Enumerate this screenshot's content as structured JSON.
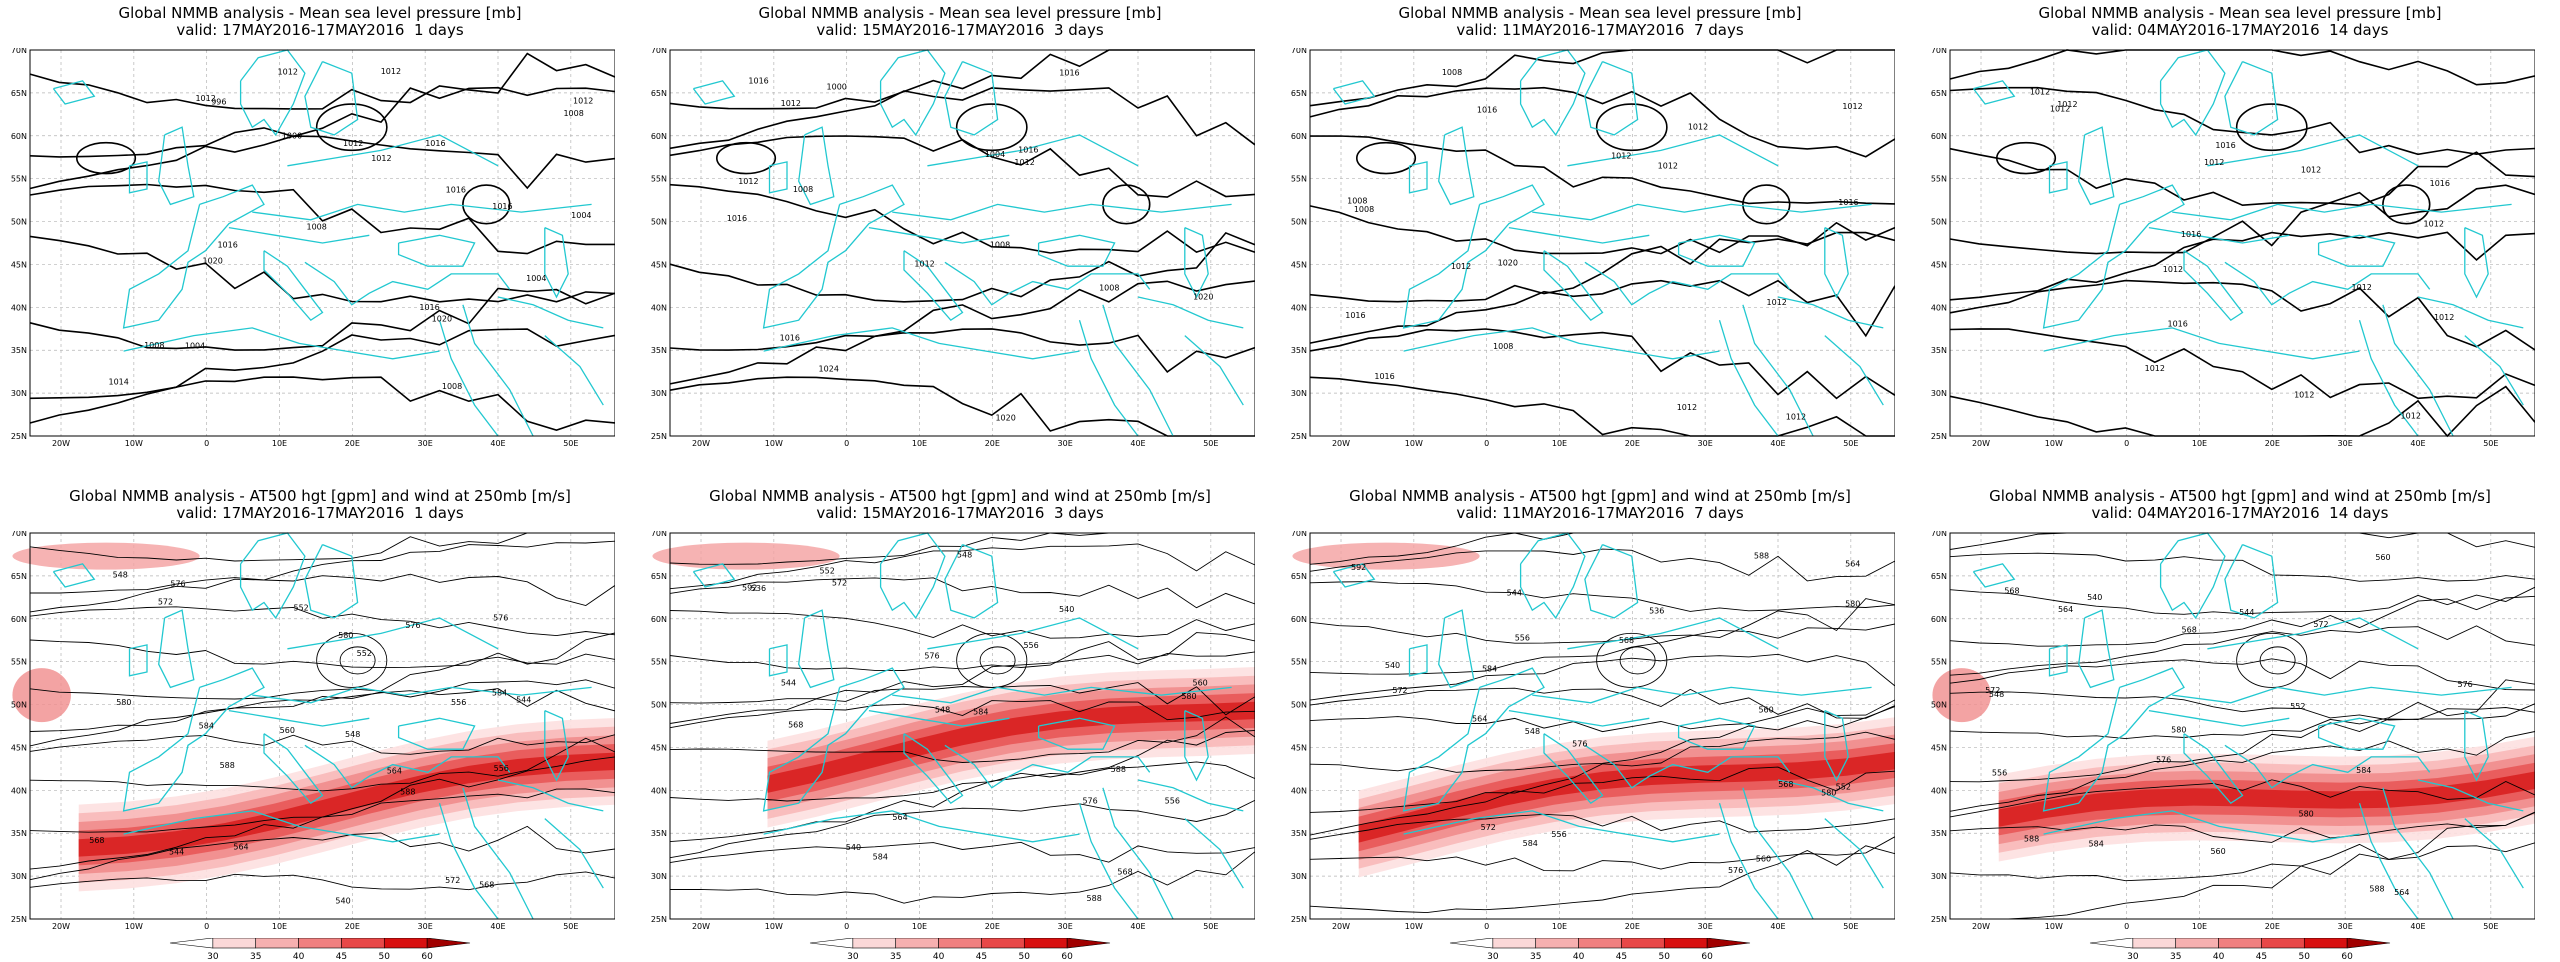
{
  "panels_top": [
    {
      "title_line1": "Global NMMB analysis - Mean sea level pressure [mb]",
      "title_line2": "valid: 17MAY2016-17MAY2016  1 days",
      "isobar_labels": [
        "996",
        "1000",
        "1004",
        "1008",
        "1004",
        "1008",
        "1012",
        "1012",
        "1016",
        "1016",
        "1020",
        "1020",
        "1004",
        "1008",
        "1012",
        "1012",
        "1016",
        "1016",
        "1016",
        "1014",
        "1012",
        "1008",
        "1012"
      ]
    },
    {
      "title_line1": "Global NMMB analysis - Mean sea level pressure [mb]",
      "title_line2": "valid: 15MAY2016-17MAY2016  3 days",
      "isobar_labels": [
        "1000",
        "1004",
        "1008",
        "1008",
        "1020",
        "1024",
        "1020",
        "1016",
        "1016",
        "1012",
        "1012",
        "1008",
        "1016",
        "1016",
        "1012",
        "1012",
        "1016"
      ]
    },
    {
      "title_line1": "Global NMMB analysis - Mean sea level pressure [mb]",
      "title_line2": "valid: 11MAY2016-17MAY2016  7 days",
      "isobar_labels": [
        "1008",
        "1012",
        "1008",
        "1020",
        "1016",
        "1008",
        "1012",
        "1016",
        "1012",
        "1016",
        "1012",
        "1012",
        "1016",
        "1012",
        "1012",
        "1012",
        "1008"
      ]
    },
    {
      "title_line1": "Global NMMB analysis - Mean sea level pressure [mb]",
      "title_line2": "valid: 04MAY2016-17MAY2016  14 days",
      "isobar_labels": [
        "1012",
        "1016",
        "1016",
        "1016",
        "1012",
        "1016",
        "1012",
        "1012",
        "1012",
        "1012",
        "1012",
        "1012",
        "1012",
        "1012",
        "1012",
        "1012"
      ]
    }
  ],
  "panels_bottom": [
    {
      "title_line1": "Global NMMB analysis - AT500 hgt [gpm] and wind at 250mb [m/s]",
      "title_line2": "valid: 17MAY2016-17MAY2016  1 days",
      "contour_labels": [
        "576",
        "552",
        "544",
        "548",
        "556",
        "564",
        "568",
        "572",
        "576",
        "580",
        "584",
        "588",
        "544",
        "540",
        "548",
        "552",
        "556",
        "560",
        "564",
        "568",
        "572",
        "576",
        "580",
        "584",
        "588"
      ]
    },
    {
      "title_line1": "Global NMMB analysis - AT500 hgt [gpm] and wind at 250mb [m/s]",
      "title_line2": "valid: 15MAY2016-17MAY2016  3 days",
      "contour_labels": [
        "536",
        "540",
        "544",
        "548",
        "556",
        "564",
        "568",
        "572",
        "576",
        "580",
        "584",
        "588",
        "540",
        "548",
        "552",
        "556",
        "560",
        "568",
        "576",
        "584",
        "588",
        "592"
      ]
    },
    {
      "title_line1": "Global NMMB analysis - AT500 hgt [gpm] and wind at 250mb [m/s]",
      "title_line2": "valid: 11MAY2016-17MAY2016  7 days",
      "contour_labels": [
        "544",
        "536",
        "540",
        "548",
        "552",
        "556",
        "560",
        "564",
        "568",
        "572",
        "576",
        "580",
        "584",
        "588",
        "592",
        "556",
        "560",
        "564",
        "568",
        "572",
        "576",
        "580",
        "584"
      ]
    },
    {
      "title_line1": "Global NMMB analysis - AT500 hgt [gpm] and wind at 250mb [m/s]",
      "title_line2": "valid: 04MAY2016-17MAY2016  14 days",
      "contour_labels": [
        "540",
        "544",
        "548",
        "552",
        "556",
        "560",
        "564",
        "568",
        "572",
        "576",
        "580",
        "584",
        "588",
        "560",
        "564",
        "568",
        "572",
        "576",
        "580",
        "584",
        "588"
      ]
    }
  ],
  "axes": {
    "lat_labels": [
      "70N",
      "65N",
      "60N",
      "55N",
      "50N",
      "45N",
      "40N",
      "35N",
      "30N",
      "25N"
    ],
    "lon_labels": [
      "20W",
      "10W",
      "0",
      "10E",
      "20E",
      "30E",
      "40E",
      "50E"
    ]
  },
  "colorbar": {
    "labels": [
      "30",
      "35",
      "40",
      "45",
      "50",
      "60"
    ],
    "colors": [
      "#ffffff",
      "#fbd8d8",
      "#f6b0b0",
      "#f08080",
      "#e84848",
      "#d81010",
      "#a00000"
    ]
  },
  "colors": {
    "coast": "#22c8d0",
    "contour": "#000000",
    "jet": "#e01010"
  }
}
